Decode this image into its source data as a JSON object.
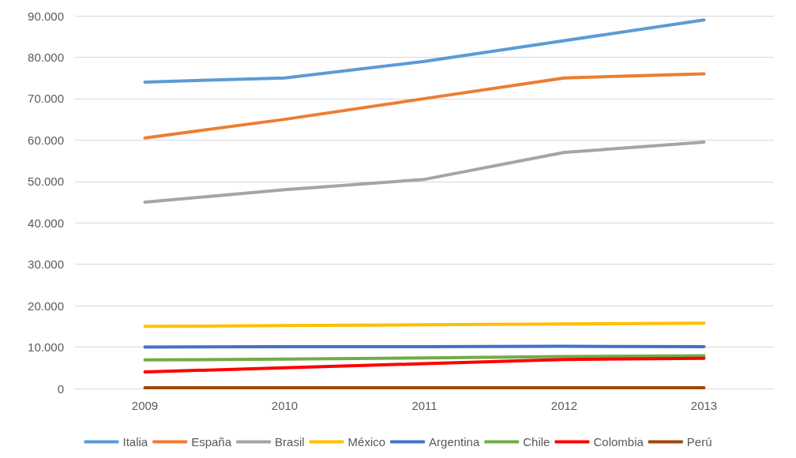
{
  "chart_data": {
    "type": "line",
    "categories": [
      "2009",
      "2010",
      "2011",
      "2012",
      "2013"
    ],
    "series": [
      {
        "name": "Italia",
        "color": "#5b9bd5",
        "values": [
          74000,
          75000,
          79000,
          84000,
          89000
        ]
      },
      {
        "name": "España",
        "color": "#ed7d31",
        "values": [
          60500,
          65000,
          70000,
          75000,
          76000
        ]
      },
      {
        "name": "Brasil",
        "color": "#a5a5a5",
        "values": [
          45000,
          48000,
          50500,
          57000,
          59500
        ]
      },
      {
        "name": "México",
        "color": "#ffc000",
        "values": [
          15000,
          15200,
          15400,
          15600,
          15800
        ]
      },
      {
        "name": "Argentina",
        "color": "#4472c4",
        "values": [
          10000,
          10100,
          10100,
          10200,
          10100
        ]
      },
      {
        "name": "Chile",
        "color": "#70ad47",
        "values": [
          6900,
          7100,
          7400,
          7700,
          7900
        ]
      },
      {
        "name": "Colombia",
        "color": "#ff0000",
        "values": [
          4000,
          5000,
          6000,
          7000,
          7300
        ]
      },
      {
        "name": "Perú",
        "color": "#9e480e",
        "values": [
          200,
          200,
          200,
          200,
          200
        ]
      }
    ],
    "ylim": [
      0,
      90000
    ],
    "yticks": [
      {
        "value": 0,
        "label": "0"
      },
      {
        "value": 10000,
        "label": "10.000"
      },
      {
        "value": 20000,
        "label": "20.000"
      },
      {
        "value": 30000,
        "label": "30.000"
      },
      {
        "value": 40000,
        "label": "40.000"
      },
      {
        "value": 50000,
        "label": "50.000"
      },
      {
        "value": 60000,
        "label": "60.000"
      },
      {
        "value": 70000,
        "label": "70.000"
      },
      {
        "value": 80000,
        "label": "80.000"
      },
      {
        "value": 90000,
        "label": "90.000"
      }
    ],
    "grid": "y",
    "legend": "bottom",
    "marker": "none",
    "line_style": "solid"
  }
}
